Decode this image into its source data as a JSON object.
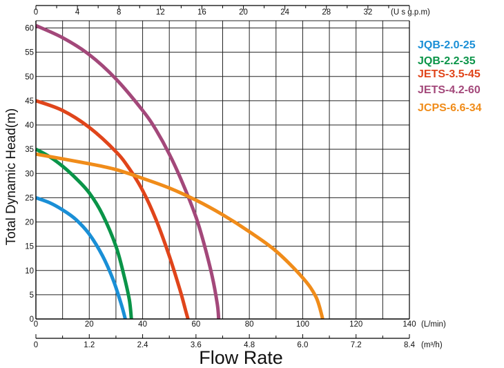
{
  "chart_data": {
    "type": "line",
    "ylabel": "Total Dynamic Head(m)",
    "xlabel": "Flow Rate",
    "y_axis": {
      "min": 0,
      "max": 60,
      "ticks": [
        0,
        5,
        10,
        15,
        20,
        25,
        30,
        35,
        40,
        45,
        50,
        55,
        60
      ]
    },
    "x_axis_lmin": {
      "min": 0,
      "max": 140,
      "ticks": [
        0,
        20,
        40,
        60,
        80,
        100,
        120,
        140
      ],
      "unit": "(L/min)"
    },
    "x_axis_m3h": {
      "min": 0,
      "max": 8.4,
      "ticks": [
        "0",
        "1.2",
        "2.4",
        "3.6",
        "4.8",
        "6.0",
        "7.2",
        "8.4"
      ],
      "unit": "(m³/h)"
    },
    "x_axis_usgpm": {
      "min": 0,
      "max": 36,
      "ticks": [
        0,
        4,
        8,
        12,
        16,
        20,
        24,
        28,
        32
      ],
      "unit": "(U s g.p.m)"
    },
    "grid": true,
    "legend_position": "right",
    "series": [
      {
        "name": "JQB-2.0-25",
        "color": "#1a8fd6",
        "points": [
          [
            0,
            25
          ],
          [
            5,
            24
          ],
          [
            10,
            22.5
          ],
          [
            15,
            20.5
          ],
          [
            20,
            17.5
          ],
          [
            25,
            13
          ],
          [
            29,
            8
          ],
          [
            32,
            3
          ],
          [
            33.5,
            0
          ]
        ]
      },
      {
        "name": "JQB-2.2-35",
        "color": "#0a9448",
        "points": [
          [
            0,
            35
          ],
          [
            5,
            33.5
          ],
          [
            10,
            31.5
          ],
          [
            15,
            29
          ],
          [
            20,
            26
          ],
          [
            25,
            21.5
          ],
          [
            30,
            15
          ],
          [
            33,
            9
          ],
          [
            35,
            4
          ],
          [
            35.8,
            0
          ]
        ]
      },
      {
        "name": "JETS-3.5-45",
        "color": "#e0451b",
        "points": [
          [
            0,
            45
          ],
          [
            10,
            43
          ],
          [
            20,
            39.5
          ],
          [
            30,
            34.5
          ],
          [
            35,
            31
          ],
          [
            40,
            26.5
          ],
          [
            45,
            20.5
          ],
          [
            50,
            13
          ],
          [
            54,
            6
          ],
          [
            56,
            2
          ],
          [
            57,
            0
          ]
        ]
      },
      {
        "name": "JETS-4.2-60",
        "color": "#a3487a",
        "points": [
          [
            0,
            60.5
          ],
          [
            10,
            58
          ],
          [
            20,
            54.5
          ],
          [
            30,
            49.5
          ],
          [
            40,
            43
          ],
          [
            45,
            39
          ],
          [
            50,
            34
          ],
          [
            55,
            28
          ],
          [
            60,
            21
          ],
          [
            63,
            15.5
          ],
          [
            66,
            9
          ],
          [
            68,
            3
          ],
          [
            68.5,
            0
          ]
        ]
      },
      {
        "name": "JCPS-6.6-34",
        "color": "#f08c1a",
        "points": [
          [
            0,
            34
          ],
          [
            20,
            32
          ],
          [
            30,
            30.8
          ],
          [
            40,
            29
          ],
          [
            50,
            27
          ],
          [
            60,
            24.5
          ],
          [
            70,
            21.5
          ],
          [
            80,
            18
          ],
          [
            90,
            14
          ],
          [
            100,
            8.5
          ],
          [
            105,
            4.5
          ],
          [
            107.5,
            0
          ]
        ]
      }
    ]
  }
}
